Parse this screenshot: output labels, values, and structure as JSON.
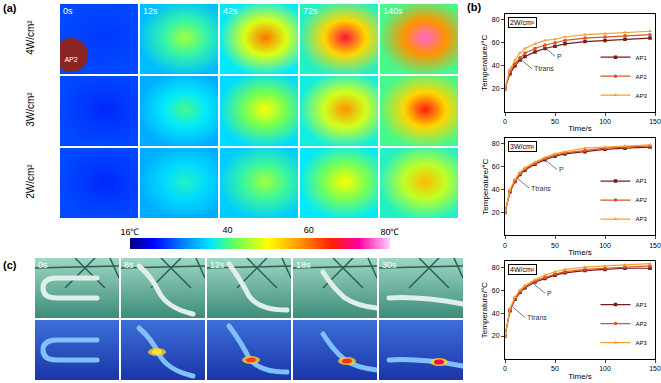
{
  "panel_labels": {
    "a": "(a)",
    "b": "(b)",
    "c": "(c)"
  },
  "thermal_images": {
    "times": [
      "0s",
      "12s",
      "42s",
      "72s",
      "140s"
    ],
    "sample_label": "AP2",
    "rows": [
      {
        "label": "4W/cm²",
        "peaks": [
          25,
          45,
          60,
          68,
          76
        ],
        "ambient": [
          26,
          33,
          36,
          38,
          40
        ]
      },
      {
        "label": "3W/cm²",
        "peaks": [
          24,
          40,
          50,
          58,
          66
        ],
        "ambient": [
          26,
          32,
          35,
          37,
          40
        ]
      },
      {
        "label": "2W/cm²",
        "peaks": [
          24,
          38,
          45,
          50,
          55
        ],
        "ambient": [
          26,
          32,
          34,
          36,
          38
        ]
      }
    ],
    "colorbar": {
      "range": [
        16,
        80
      ],
      "ticks": [
        {
          "value": 16,
          "label": "16℃"
        },
        40,
        60,
        {
          "value": 80,
          "label": "80℃"
        }
      ]
    }
  },
  "photos": {
    "times": [
      "0s",
      "8s",
      "12s",
      "18s",
      "30s"
    ]
  },
  "chart_data": [
    {
      "type": "line",
      "title": "2W/cm²",
      "x_label": "Time/s",
      "y_label": "Temperature/°C",
      "x": [
        0,
        5,
        10,
        15,
        20,
        30,
        40,
        50,
        60,
        80,
        100,
        120,
        145
      ],
      "series": [
        {
          "name": "AP1",
          "color": "#7b1a1a",
          "marker": "square",
          "values": [
            20,
            33,
            40,
            45,
            48,
            52,
            55,
            57,
            59,
            61,
            62,
            63,
            64
          ]
        },
        {
          "name": "AP2",
          "color": "#d9542a",
          "marker": "circle",
          "values": [
            20,
            35,
            42,
            47,
            51,
            55,
            58,
            60,
            62,
            64,
            65,
            66,
            67
          ]
        },
        {
          "name": "AP3",
          "color": "#f5a030",
          "marker": "triangle-up",
          "values": [
            20,
            37,
            45,
            51,
            55,
            59,
            62,
            63,
            65,
            67,
            68,
            69,
            70
          ]
        }
      ],
      "annotations": [
        {
          "text": "P",
          "x": 38,
          "y": 57
        },
        {
          "text": "Ttrans",
          "x": 15,
          "y": 46
        }
      ],
      "xlim": [
        0,
        150
      ],
      "xticks": [
        0,
        50,
        100,
        150
      ],
      "ylim": [
        0,
        85
      ],
      "yticks": [
        20,
        40,
        60,
        80
      ],
      "legend": "lower right",
      "grid": false
    },
    {
      "type": "line",
      "title": "3W/cm²",
      "x_label": "Time/s",
      "y_label": "Temperature/°C",
      "x": [
        0,
        5,
        10,
        15,
        20,
        30,
        40,
        50,
        60,
        80,
        100,
        120,
        145
      ],
      "series": [
        {
          "name": "AP1",
          "color": "#7b1a1a",
          "marker": "square",
          "values": [
            20,
            38,
            47,
            53,
            57,
            62,
            66,
            69,
            71,
            73,
            75,
            76,
            77
          ]
        },
        {
          "name": "AP2",
          "color": "#d9542a",
          "marker": "circle",
          "values": [
            20,
            39,
            48,
            54,
            58,
            63,
            67,
            70,
            72,
            74,
            76,
            77,
            78
          ]
        },
        {
          "name": "AP3",
          "color": "#f5a030",
          "marker": "triangle-up",
          "values": [
            20,
            40,
            49,
            55,
            59,
            64,
            68,
            71,
            73,
            76,
            77,
            78,
            79
          ]
        }
      ],
      "annotations": [
        {
          "text": "P",
          "x": 40,
          "y": 66
        },
        {
          "text": "Ttrans",
          "x": 12,
          "y": 50
        }
      ],
      "xlim": [
        0,
        150
      ],
      "xticks": [
        0,
        50,
        100,
        150
      ],
      "ylim": [
        0,
        85
      ],
      "yticks": [
        20,
        40,
        60,
        80
      ],
      "legend": "lower right",
      "grid": false
    },
    {
      "type": "line",
      "title": "4W/cm²",
      "x_label": "Time/s",
      "y_label": "Temperature/°C",
      "x": [
        0,
        5,
        10,
        15,
        20,
        30,
        40,
        50,
        60,
        80,
        100,
        120,
        145
      ],
      "series": [
        {
          "name": "AP1",
          "color": "#7b1a1a",
          "marker": "square",
          "values": [
            20,
            42,
            52,
            58,
            62,
            67,
            70,
            73,
            75,
            77,
            78,
            79,
            79
          ]
        },
        {
          "name": "AP2",
          "color": "#d9542a",
          "marker": "circle",
          "values": [
            20,
            43,
            53,
            59,
            63,
            68,
            71,
            74,
            76,
            78,
            79,
            80,
            81
          ]
        },
        {
          "name": "AP3",
          "color": "#f5a030",
          "marker": "triangle-up",
          "values": [
            20,
            44,
            54,
            60,
            64,
            69,
            73,
            76,
            78,
            80,
            81,
            82,
            83
          ]
        }
      ],
      "annotations": [
        {
          "text": "P",
          "x": 28,
          "y": 66
        },
        {
          "text": "Ttrans",
          "x": 8,
          "y": 45
        }
      ],
      "xlim": [
        0,
        150
      ],
      "xticks": [
        0,
        50,
        100,
        150
      ],
      "ylim": [
        0,
        85
      ],
      "yticks": [
        20,
        40,
        60,
        80
      ],
      "legend": "lower right",
      "grid": false
    }
  ]
}
